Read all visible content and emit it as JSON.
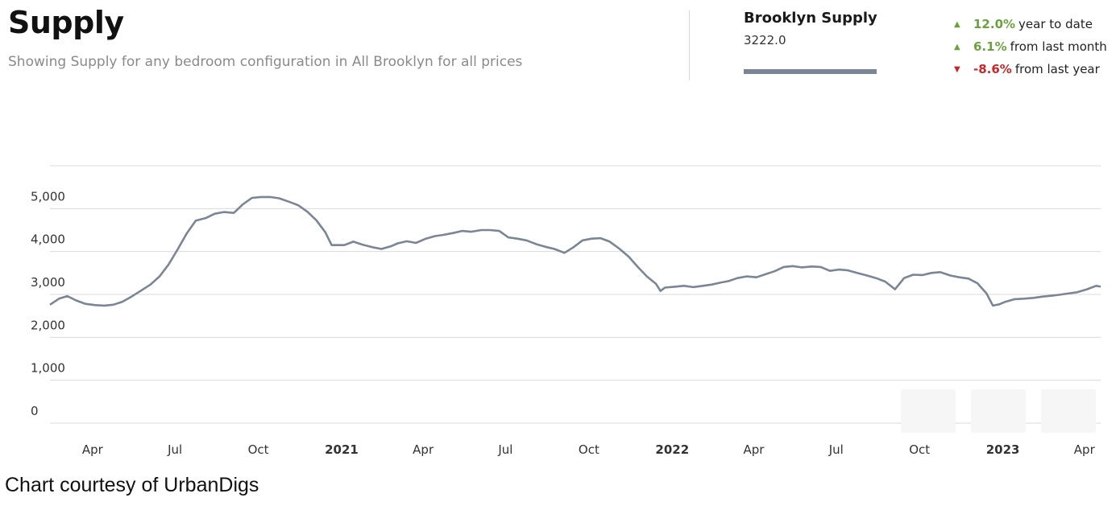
{
  "header": {
    "title": "Supply",
    "subtitle": "Showing Supply for any bedroom configuration in All Brooklyn for all prices"
  },
  "stats": {
    "name": "Brooklyn Supply",
    "value": "3222.0",
    "series_color": "#7a8595",
    "changes": [
      {
        "direction": "up",
        "pct": "12.0%",
        "label": "year to date"
      },
      {
        "direction": "up",
        "pct": "6.1%",
        "label": "from last month"
      },
      {
        "direction": "down",
        "pct": "-8.6%",
        "label": "from last year"
      }
    ]
  },
  "credit": "Chart courtesy of UrbanDigs",
  "chart_data": {
    "type": "line",
    "xlabel": "",
    "ylabel": "",
    "ylim": [
      0,
      6000
    ],
    "grid": true,
    "y_ticks": [
      0,
      1000,
      2000,
      3000,
      4000,
      5000
    ],
    "y_tick_labels": [
      "0",
      "1,000",
      "2,000",
      "3,000",
      "4,000",
      "5,000"
    ],
    "x_ticks": [
      {
        "date": "2020-04-01",
        "label": "Apr",
        "bold": false
      },
      {
        "date": "2020-07-01",
        "label": "Jul",
        "bold": false
      },
      {
        "date": "2020-10-01",
        "label": "Oct",
        "bold": false
      },
      {
        "date": "2021-01-01",
        "label": "2021",
        "bold": true
      },
      {
        "date": "2021-04-01",
        "label": "Apr",
        "bold": false
      },
      {
        "date": "2021-07-01",
        "label": "Jul",
        "bold": false
      },
      {
        "date": "2021-10-01",
        "label": "Oct",
        "bold": false
      },
      {
        "date": "2022-01-01",
        "label": "2022",
        "bold": true
      },
      {
        "date": "2022-04-01",
        "label": "Apr",
        "bold": false
      },
      {
        "date": "2022-07-01",
        "label": "Jul",
        "bold": false
      },
      {
        "date": "2022-10-01",
        "label": "Oct",
        "bold": false
      },
      {
        "date": "2023-01-01",
        "label": "2023",
        "bold": true
      },
      {
        "date": "2023-04-01",
        "label": "Apr",
        "bold": false
      }
    ],
    "xlim": [
      "2020-02-14",
      "2023-04-19"
    ],
    "series": [
      {
        "color": "#7a8595",
        "points": [
          [
            "2020-02-14",
            2760
          ],
          [
            "2020-02-24",
            2900
          ],
          [
            "2020-03-04",
            2960
          ],
          [
            "2020-03-14",
            2860
          ],
          [
            "2020-03-24",
            2780
          ],
          [
            "2020-04-04",
            2750
          ],
          [
            "2020-04-14",
            2740
          ],
          [
            "2020-04-24",
            2760
          ],
          [
            "2020-05-04",
            2830
          ],
          [
            "2020-05-14",
            2950
          ],
          [
            "2020-05-24",
            3080
          ],
          [
            "2020-06-04",
            3230
          ],
          [
            "2020-06-14",
            3420
          ],
          [
            "2020-06-24",
            3700
          ],
          [
            "2020-07-04",
            4050
          ],
          [
            "2020-07-14",
            4420
          ],
          [
            "2020-07-24",
            4720
          ],
          [
            "2020-08-04",
            4780
          ],
          [
            "2020-08-14",
            4880
          ],
          [
            "2020-08-24",
            4920
          ],
          [
            "2020-09-04",
            4900
          ],
          [
            "2020-09-14",
            5100
          ],
          [
            "2020-09-24",
            5250
          ],
          [
            "2020-10-04",
            5270
          ],
          [
            "2020-10-14",
            5270
          ],
          [
            "2020-10-24",
            5240
          ],
          [
            "2020-11-04",
            5160
          ],
          [
            "2020-11-14",
            5080
          ],
          [
            "2020-11-24",
            4930
          ],
          [
            "2020-12-04",
            4730
          ],
          [
            "2020-12-14",
            4450
          ],
          [
            "2020-12-21",
            4150
          ],
          [
            "2021-01-04",
            4150
          ],
          [
            "2021-01-14",
            4230
          ],
          [
            "2021-01-24",
            4160
          ],
          [
            "2021-02-04",
            4100
          ],
          [
            "2021-02-14",
            4060
          ],
          [
            "2021-02-24",
            4120
          ],
          [
            "2021-03-04",
            4190
          ],
          [
            "2021-03-14",
            4240
          ],
          [
            "2021-03-24",
            4200
          ],
          [
            "2021-04-04",
            4300
          ],
          [
            "2021-04-14",
            4360
          ],
          [
            "2021-04-24",
            4390
          ],
          [
            "2021-05-04",
            4430
          ],
          [
            "2021-05-14",
            4480
          ],
          [
            "2021-05-24",
            4460
          ],
          [
            "2021-06-04",
            4500
          ],
          [
            "2021-06-14",
            4500
          ],
          [
            "2021-06-24",
            4480
          ],
          [
            "2021-07-04",
            4330
          ],
          [
            "2021-07-14",
            4300
          ],
          [
            "2021-07-24",
            4260
          ],
          [
            "2021-08-04",
            4170
          ],
          [
            "2021-08-14",
            4110
          ],
          [
            "2021-08-24",
            4060
          ],
          [
            "2021-09-04",
            3970
          ],
          [
            "2021-09-14",
            4100
          ],
          [
            "2021-09-24",
            4260
          ],
          [
            "2021-10-04",
            4300
          ],
          [
            "2021-10-14",
            4310
          ],
          [
            "2021-10-24",
            4230
          ],
          [
            "2021-11-04",
            4060
          ],
          [
            "2021-11-14",
            3880
          ],
          [
            "2021-11-24",
            3640
          ],
          [
            "2021-12-04",
            3420
          ],
          [
            "2021-12-14",
            3250
          ],
          [
            "2021-12-19",
            3080
          ],
          [
            "2021-12-24",
            3160
          ],
          [
            "2022-01-04",
            3180
          ],
          [
            "2022-01-14",
            3200
          ],
          [
            "2022-01-24",
            3170
          ],
          [
            "2022-02-04",
            3200
          ],
          [
            "2022-02-14",
            3230
          ],
          [
            "2022-02-24",
            3280
          ],
          [
            "2022-03-04",
            3310
          ],
          [
            "2022-03-14",
            3380
          ],
          [
            "2022-03-24",
            3420
          ],
          [
            "2022-04-04",
            3400
          ],
          [
            "2022-04-14",
            3470
          ],
          [
            "2022-04-24",
            3540
          ],
          [
            "2022-05-04",
            3640
          ],
          [
            "2022-05-14",
            3660
          ],
          [
            "2022-05-24",
            3630
          ],
          [
            "2022-06-04",
            3650
          ],
          [
            "2022-06-14",
            3640
          ],
          [
            "2022-06-24",
            3550
          ],
          [
            "2022-07-04",
            3580
          ],
          [
            "2022-07-14",
            3560
          ],
          [
            "2022-07-24",
            3500
          ],
          [
            "2022-08-04",
            3440
          ],
          [
            "2022-08-14",
            3380
          ],
          [
            "2022-08-24",
            3300
          ],
          [
            "2022-09-04",
            3120
          ],
          [
            "2022-09-14",
            3380
          ],
          [
            "2022-09-24",
            3460
          ],
          [
            "2022-10-04",
            3450
          ],
          [
            "2022-10-14",
            3500
          ],
          [
            "2022-10-24",
            3520
          ],
          [
            "2022-11-04",
            3440
          ],
          [
            "2022-11-14",
            3400
          ],
          [
            "2022-11-24",
            3370
          ],
          [
            "2022-12-04",
            3260
          ],
          [
            "2022-12-14",
            3020
          ],
          [
            "2022-12-21",
            2740
          ],
          [
            "2022-12-28",
            2770
          ],
          [
            "2023-01-04",
            2830
          ],
          [
            "2023-01-14",
            2890
          ],
          [
            "2023-01-24",
            2900
          ],
          [
            "2023-02-04",
            2920
          ],
          [
            "2023-02-14",
            2950
          ],
          [
            "2023-02-24",
            2970
          ],
          [
            "2023-03-04",
            2990
          ],
          [
            "2023-03-14",
            3020
          ],
          [
            "2023-03-24",
            3050
          ],
          [
            "2023-04-04",
            3120
          ],
          [
            "2023-04-14",
            3200
          ],
          [
            "2023-04-19",
            3180
          ]
        ]
      }
    ]
  }
}
